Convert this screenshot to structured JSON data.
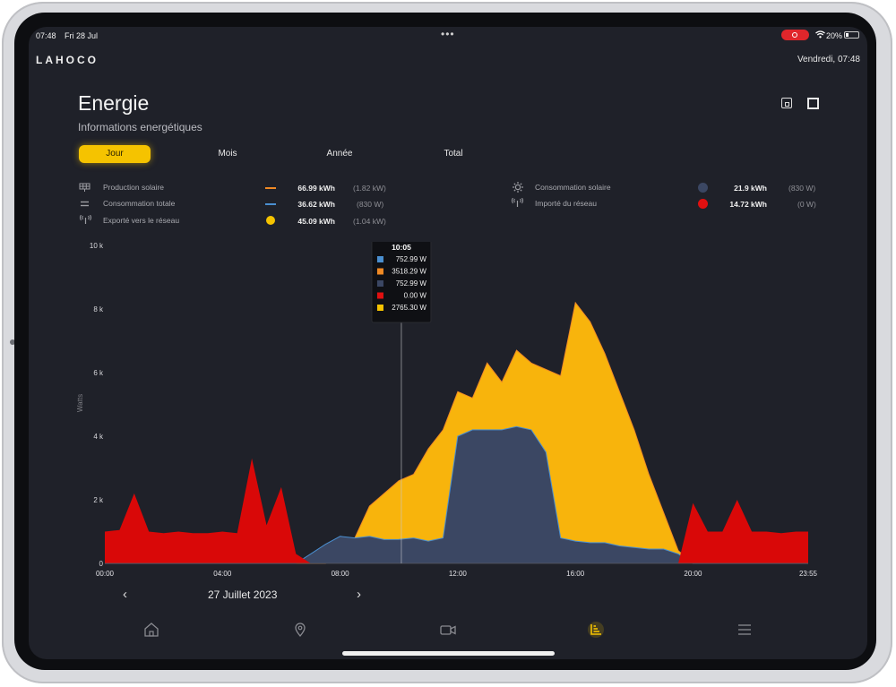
{
  "status_bar": {
    "time": "07:48",
    "date": "Fri 28 Jul",
    "battery": "20%"
  },
  "app": {
    "brand": "LAHOCO",
    "top_date": "Vendredi, 07:48"
  },
  "page": {
    "title": "Energie",
    "subtitle": "Informations energétiques"
  },
  "tabs": [
    {
      "label": "Jour",
      "active": true
    },
    {
      "label": "Mois",
      "active": false
    },
    {
      "label": "Année",
      "active": false
    },
    {
      "label": "Total",
      "active": false
    }
  ],
  "legend_left": [
    {
      "icon": "solar-panel-icon",
      "label": "Production solaire",
      "marker": "line",
      "color": "#f08a24",
      "value": "66.99 kWh",
      "power": "(1.82 kW)"
    },
    {
      "icon": "equals-icon",
      "label": "Consommation totale",
      "marker": "line",
      "color": "#4a8fd0",
      "value": "36.62 kWh",
      "power": "(830 W)"
    },
    {
      "icon": "antenna-icon",
      "label": "Exporté vers le réseau",
      "marker": "dot",
      "color": "#f5c300",
      "value": "45.09 kWh",
      "power": "(1.04 kW)"
    }
  ],
  "legend_right": [
    {
      "icon": "sun-gear-icon",
      "label": "Consommation solaire",
      "marker": "dot",
      "color": "#3b4763",
      "value": "21.9 kWh",
      "power": "(830 W)"
    },
    {
      "icon": "antenna-icon",
      "label": "Importé du réseau",
      "marker": "dot",
      "color": "#e01010",
      "value": "14.72 kWh",
      "power": "(0 W)"
    }
  ],
  "colors": {
    "background": "#1f2129",
    "export_yellow": "#f8b40c",
    "solar_consumption_navy": "#3b4763",
    "import_red": "#d90808",
    "accent": "#f5c300"
  },
  "tooltip": {
    "title": "10:05",
    "rows": [
      {
        "color": "#4a8fd0",
        "value": "752.99 W"
      },
      {
        "color": "#f08a24",
        "value": "3518.29 W"
      },
      {
        "color": "#3b4763",
        "value": "752.99 W"
      },
      {
        "color": "#e01010",
        "value": "0.00 W"
      },
      {
        "color": "#f5c300",
        "value": "2765.30 W"
      }
    ]
  },
  "chart_data": {
    "type": "area",
    "ylabel": "Watts",
    "ylim": [
      0,
      10000
    ],
    "y_ticks": [
      "0",
      "2 k",
      "4 k",
      "6 k",
      "8 k",
      "10 k"
    ],
    "x_ticks": [
      "00:00",
      "04:00",
      "08:00",
      "12:00",
      "16:00",
      "20:00",
      "23:55"
    ],
    "crosshair_x": "10:05",
    "x": [
      "00:00",
      "00:30",
      "01:00",
      "01:30",
      "02:00",
      "02:30",
      "03:00",
      "03:30",
      "04:00",
      "04:30",
      "05:00",
      "05:30",
      "06:00",
      "06:30",
      "07:00",
      "07:30",
      "08:00",
      "08:30",
      "09:00",
      "09:30",
      "10:00",
      "10:30",
      "11:00",
      "11:30",
      "12:00",
      "12:30",
      "13:00",
      "13:30",
      "14:00",
      "14:30",
      "15:00",
      "15:30",
      "16:00",
      "16:30",
      "17:00",
      "17:30",
      "18:00",
      "18:30",
      "19:00",
      "19:30",
      "20:00",
      "20:30",
      "21:00",
      "21:30",
      "22:00",
      "22:30",
      "23:00",
      "23:30",
      "23:55"
    ],
    "series": [
      {
        "name": "Exporté vers le réseau",
        "color": "#f8b40c",
        "values": [
          0,
          0,
          0,
          0,
          0,
          0,
          0,
          0,
          0,
          0,
          0,
          0,
          0,
          0,
          0,
          0,
          300,
          800,
          1800,
          2200,
          2600,
          2800,
          3600,
          4200,
          5400,
          5200,
          6300,
          5700,
          6700,
          6300,
          6100,
          5900,
          8200,
          7600,
          6600,
          5400,
          4200,
          2800,
          1600,
          400,
          0,
          0,
          0,
          0,
          0,
          0,
          0,
          0,
          0
        ]
      },
      {
        "name": "Consommation solaire",
        "color": "#3b4763",
        "values": [
          0,
          0,
          0,
          0,
          0,
          0,
          0,
          0,
          0,
          0,
          0,
          0,
          0,
          0,
          300,
          600,
          850,
          800,
          850,
          750,
          753,
          800,
          700,
          800,
          4000,
          4200,
          4200,
          4200,
          4300,
          4200,
          3500,
          800,
          700,
          650,
          650,
          550,
          500,
          450,
          450,
          300,
          0,
          0,
          0,
          0,
          0,
          0,
          0,
          0,
          0
        ]
      },
      {
        "name": "Importé du réseau",
        "color": "#d90808",
        "values": [
          1000,
          1050,
          2200,
          1000,
          950,
          1000,
          950,
          950,
          1000,
          950,
          3300,
          1200,
          2400,
          300,
          0,
          0,
          0,
          0,
          0,
          0,
          0,
          0,
          0,
          0,
          0,
          0,
          0,
          0,
          0,
          0,
          0,
          0,
          0,
          0,
          0,
          0,
          0,
          0,
          0,
          0,
          1900,
          1000,
          1000,
          2000,
          1000,
          1000,
          950,
          1000,
          1000
        ]
      }
    ]
  },
  "date_nav": {
    "date": "27 Juillet 2023"
  },
  "bottom_nav": [
    {
      "icon": "home-icon",
      "active": false
    },
    {
      "icon": "map-pin-icon",
      "active": false
    },
    {
      "icon": "video-camera-icon",
      "active": false
    },
    {
      "icon": "chart-icon",
      "active": true
    },
    {
      "icon": "menu-icon",
      "active": false
    }
  ]
}
